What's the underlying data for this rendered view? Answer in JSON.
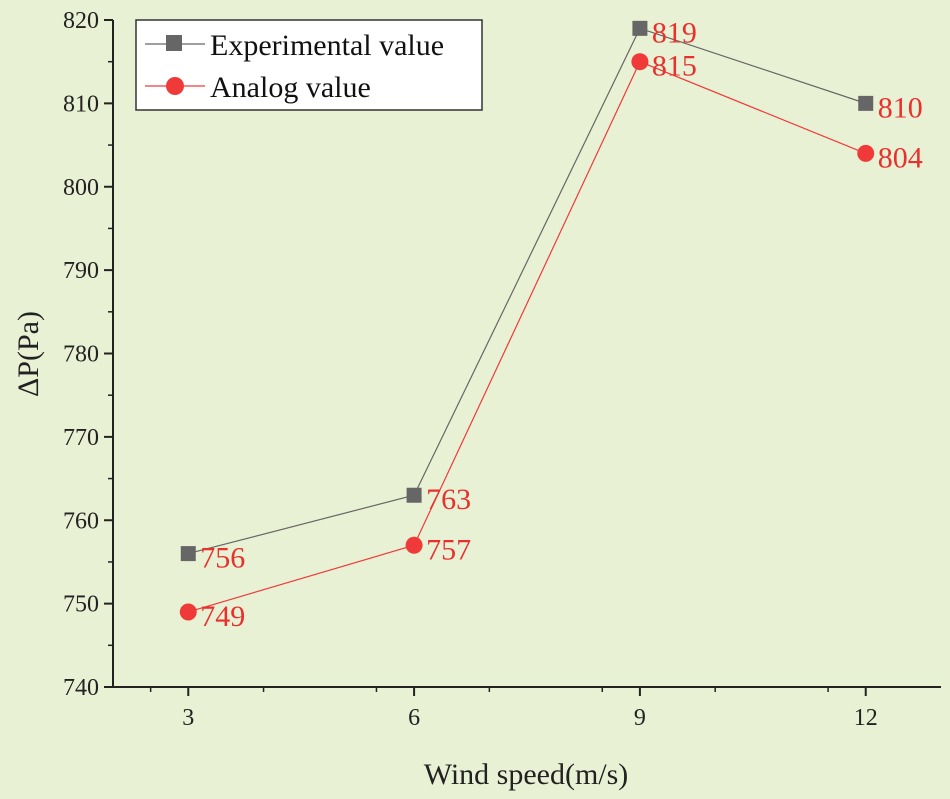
{
  "chart_data": {
    "type": "line",
    "title": "",
    "xlabel": "Wind speed(m/s)",
    "ylabel": "ΔP(Pa)",
    "categories": [
      "3",
      "6",
      "9",
      "12"
    ],
    "x": [
      3,
      6,
      9,
      12
    ],
    "xlim": [
      2,
      13
    ],
    "ylim": [
      740,
      820
    ],
    "xticks": [
      "3",
      "6",
      "9",
      "12"
    ],
    "yticks": [
      "740",
      "750",
      "760",
      "770",
      "780",
      "790",
      "800",
      "810",
      "820"
    ],
    "grid": false,
    "legend_position": "top-left",
    "series": [
      {
        "name": "Experimental value",
        "marker": "square",
        "color": "#666666",
        "label_color": "#e8302f",
        "values": [
          756,
          763,
          819,
          810
        ],
        "labels": [
          "756",
          "763",
          "819",
          "810"
        ]
      },
      {
        "name": "Analog value",
        "marker": "circle",
        "color": "#f03a3a",
        "label_color": "#e8302f",
        "values": [
          749,
          757,
          815,
          804
        ],
        "labels": [
          "749",
          "757",
          "815",
          "804"
        ]
      }
    ]
  },
  "colors": {
    "background": "#e9f1d4",
    "axis": "#222222"
  }
}
